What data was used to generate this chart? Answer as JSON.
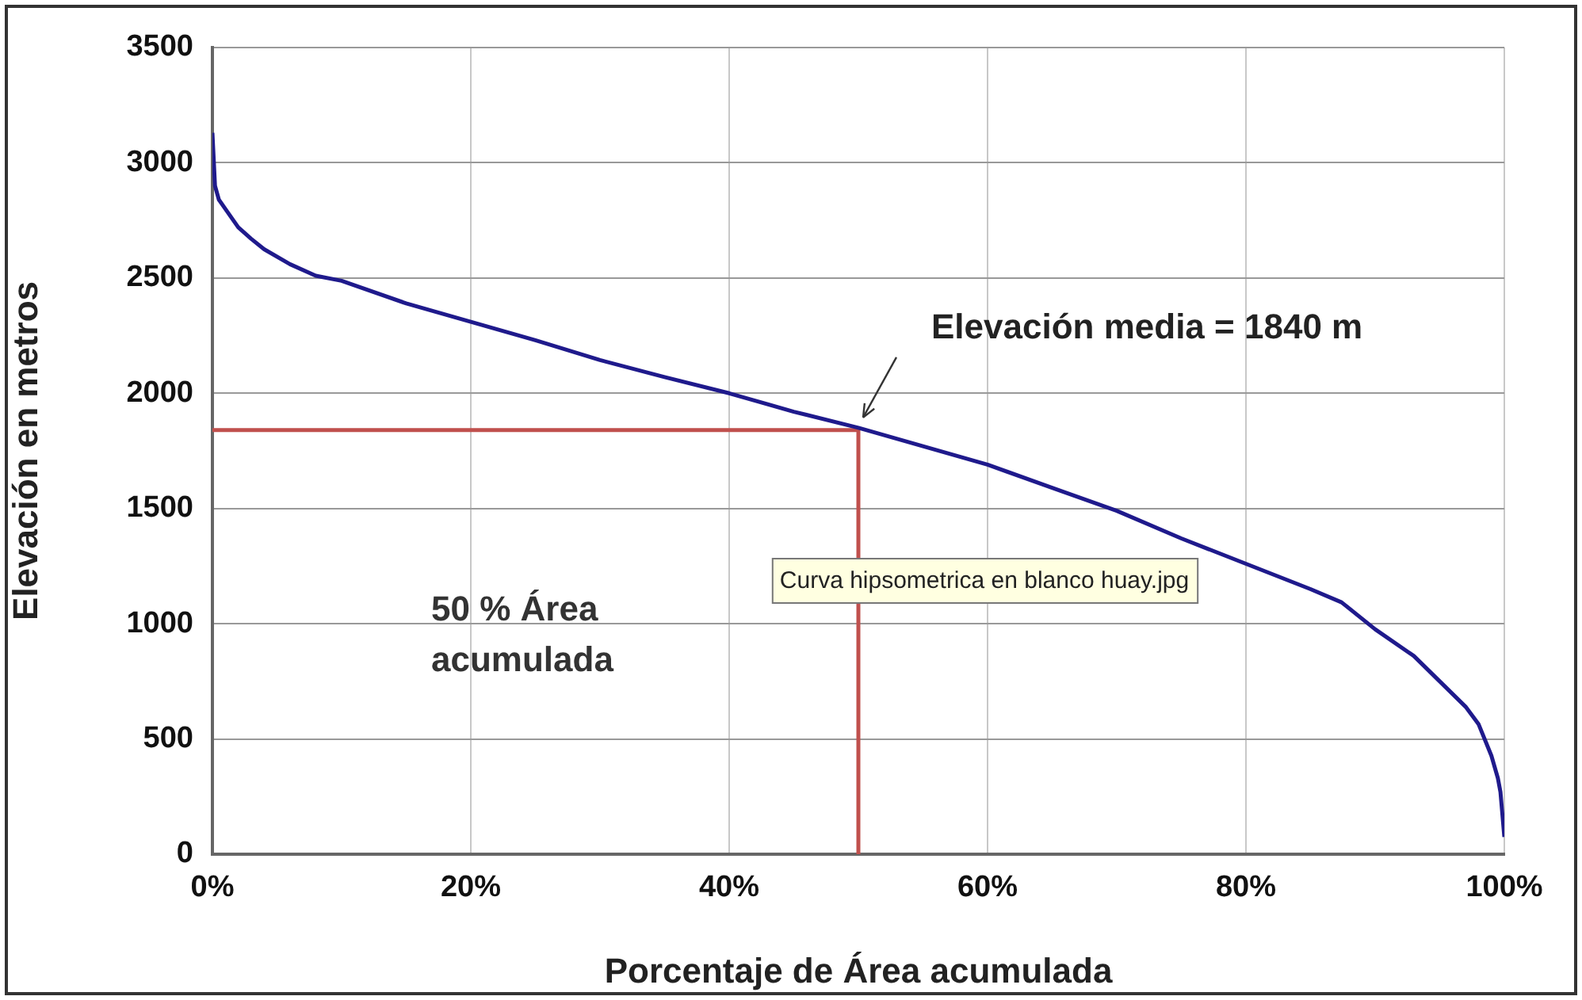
{
  "chart_data": {
    "type": "line",
    "xlabel": "Porcentaje de Área acumulada",
    "ylabel": "Elevación en metros",
    "xlim": [
      0,
      100
    ],
    "ylim": [
      0,
      3500
    ],
    "xticks": [
      {
        "value": 0,
        "label": "0%"
      },
      {
        "value": 20,
        "label": "20%"
      },
      {
        "value": 40,
        "label": "40%"
      },
      {
        "value": 60,
        "label": "60%"
      },
      {
        "value": 80,
        "label": "80%"
      },
      {
        "value": 100,
        "label": "100%"
      }
    ],
    "yticks": [
      0,
      500,
      1000,
      1500,
      2000,
      2500,
      3000,
      3500
    ],
    "grid": true,
    "legend": false,
    "marker": "none",
    "line_style": "solid",
    "series": [
      {
        "color": "#1f1a8c",
        "x": [
          0,
          0.2,
          0.5,
          1,
          2,
          3,
          4,
          6,
          8,
          10,
          15,
          20,
          25,
          30,
          35,
          40,
          45,
          50,
          55,
          60,
          65,
          70,
          75,
          80,
          85,
          87.4,
          90,
          93,
          95,
          97,
          98,
          99,
          99.5,
          99.7,
          100
        ],
        "values": [
          3130,
          2900,
          2840,
          2800,
          2720,
          2670,
          2625,
          2560,
          2510,
          2488,
          2390,
          2310,
          2230,
          2144,
          2070,
          2000,
          1920,
          1850,
          1770,
          1690,
          1590,
          1490,
          1370,
          1260,
          1150,
          1093,
          976,
          860,
          750,
          640,
          565,
          427,
          330,
          270,
          75
        ]
      },
      {
        "color": "#c0504d",
        "x": [
          0,
          50,
          50
        ],
        "values": [
          1840,
          1840,
          0
        ]
      }
    ],
    "annotations": [
      {
        "text": "Elevación media = 1840 m",
        "x": 50,
        "y": 1840
      },
      "50 % Área acumulada",
      "Curva hipsometrica en blanco huay.jpg"
    ]
  }
}
